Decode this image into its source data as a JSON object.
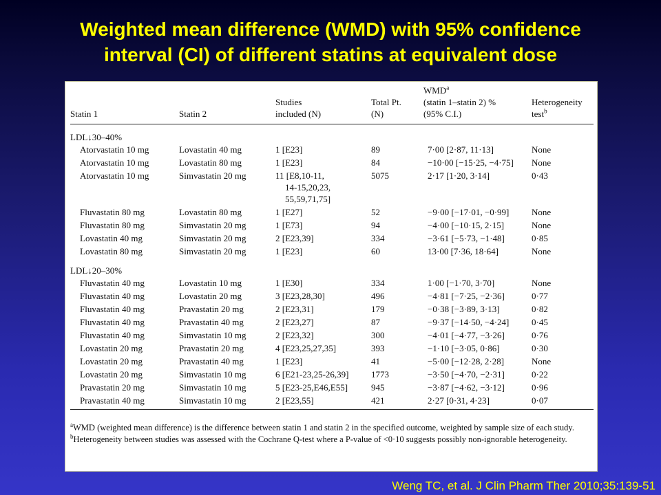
{
  "title": {
    "line1": "Weighted mean difference (WMD) with 95% confidence",
    "line2": "interval (CI) of different statins at equivalent dose"
  },
  "table": {
    "headers": {
      "statin1": "Statin 1",
      "statin2": "Statin 2",
      "studies_line1": "Studies",
      "studies_line2": "included (N)",
      "total_line1": "Total Pt.",
      "total_line2": "(N)",
      "wmd_line1": "WMD",
      "wmd_sup": "a",
      "wmd_line2": "(statin 1–statin 2) %",
      "wmd_line3": "(95% C.I.)",
      "het_line1": "Heterogeneity",
      "het_line2": "test",
      "het_sup": "b"
    },
    "sections": [
      {
        "label": "LDL↓30–40%",
        "rows": [
          {
            "statin1": "Atorvastatin 10 mg",
            "statin2": "Lovastatin 40 mg",
            "studies": [
              "1 [E23]"
            ],
            "total": "89",
            "wmd": "7·00 [2·87, 11·13]",
            "het": "None"
          },
          {
            "statin1": "Atorvastatin 10 mg",
            "statin2": "Lovastatin 80 mg",
            "studies": [
              "1 [E23]"
            ],
            "total": "84",
            "wmd": "−10·00 [−15·25, −4·75]",
            "het": "None"
          },
          {
            "statin1": "Atorvastatin 10 mg",
            "statin2": "Simvastatin 20 mg",
            "studies": [
              "11 [E8,10-11,",
              "14-15,20,23,",
              "55,59,71,75]"
            ],
            "total": "5075",
            "wmd": "2·17 [1·20, 3·14]",
            "het": "0·43"
          },
          {
            "statin1": "Fluvastatin 80 mg",
            "statin2": "Lovastatin 80 mg",
            "studies": [
              "1 [E27]"
            ],
            "total": "52",
            "wmd": "−9·00 [−17·01, −0·99]",
            "het": "None"
          },
          {
            "statin1": "Fluvastatin 80 mg",
            "statin2": "Simvastatin 20 mg",
            "studies": [
              "1 [E73]"
            ],
            "total": "94",
            "wmd": "−4·00 [−10·15, 2·15]",
            "het": "None"
          },
          {
            "statin1": "Lovastatin 40 mg",
            "statin2": "Simvastatin 20 mg",
            "studies": [
              "2 [E23,39]"
            ],
            "total": "334",
            "wmd": "−3·61 [−5·73, −1·48]",
            "het": "0·85"
          },
          {
            "statin1": "Lovastatin 80 mg",
            "statin2": "Simvastatin 20 mg",
            "studies": [
              "1 [E23]"
            ],
            "total": "60",
            "wmd": "13·00 [7·36, 18·64]",
            "het": "None"
          }
        ]
      },
      {
        "label": "LDL↓20–30%",
        "rows": [
          {
            "statin1": "Fluvastatin 40 mg",
            "statin2": "Lovastatin 10 mg",
            "studies": [
              "1 [E30]"
            ],
            "total": "334",
            "wmd": "1·00 [−1·70, 3·70]",
            "het": "None"
          },
          {
            "statin1": "Fluvastatin 40 mg",
            "statin2": "Lovastatin 20 mg",
            "studies": [
              "3 [E23,28,30]"
            ],
            "total": "496",
            "wmd": "−4·81 [−7·25, −2·36]",
            "het": "0·77"
          },
          {
            "statin1": "Fluvastatin 40 mg",
            "statin2": "Pravastatin 20 mg",
            "studies": [
              "2 [E23,31]"
            ],
            "total": "179",
            "wmd": "−0·38 [−3·89, 3·13]",
            "het": "0·82"
          },
          {
            "statin1": "Fluvastatin 40 mg",
            "statin2": "Pravastatin 40 mg",
            "studies": [
              "2 [E23,27]"
            ],
            "total": "87",
            "wmd": "−9·37 [−14·50, −4·24]",
            "het": "0·45"
          },
          {
            "statin1": "Fluvastatin 40 mg",
            "statin2": "Simvastatin 10 mg",
            "studies": [
              "2 [E23,32]"
            ],
            "total": "300",
            "wmd": "−4·01 [−4·77, −3·26]",
            "het": "0·76"
          },
          {
            "statin1": "Lovastatin 20 mg",
            "statin2": "Pravastatin 20 mg",
            "studies": [
              "4 [E23,25,27,35]"
            ],
            "total": "393",
            "wmd": "−1·10 [−3·05, 0·86]",
            "het": "0·30"
          },
          {
            "statin1": "Lovastatin 20 mg",
            "statin2": "Pravastatin 40 mg",
            "studies": [
              "1 [E23]"
            ],
            "total": "41",
            "wmd": "−5·00 [−12·28, 2·28]",
            "het": "None"
          },
          {
            "statin1": "Lovastatin 20 mg",
            "statin2": "Simvastatin 10 mg",
            "studies": [
              "6 [E21-23,25-26,39]"
            ],
            "total": "1773",
            "wmd": "−3·50 [−4·70, −2·31]",
            "het": "0·22"
          },
          {
            "statin1": "Pravastatin 20 mg",
            "statin2": "Simvastatin 10 mg",
            "studies": [
              "5 [E23-25,E46,E55]"
            ],
            "total": "945",
            "wmd": "−3·87 [−4·62, −3·12]",
            "het": "0·96"
          },
          {
            "statin1": "Pravastatin 40 mg",
            "statin2": "Simvastatin 10 mg",
            "studies": [
              "2 [E23,55]"
            ],
            "total": "421",
            "wmd": "2·27 [0·31, 4·23]",
            "het": "0·07"
          }
        ]
      }
    ]
  },
  "footnotes": {
    "a_mark": "a",
    "a_text": "WMD (weighted mean difference) is the difference between statin 1 and statin 2 in the specified outcome, weighted by sample size of each study.",
    "b_mark": "b",
    "b_text": "Heterogeneity between studies was assessed with the Cochrane Q-test where a P-value of <0·10 suggests possibly non-ignorable heterogeneity."
  },
  "citation": "Weng TC, et al. J Clin Pharm Ther 2010;35:139-51"
}
